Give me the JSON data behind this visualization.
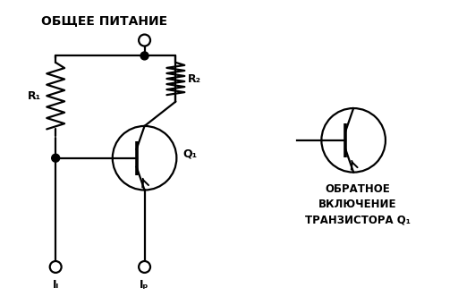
{
  "title": "ОБЩЕЕ ПИТАНИЕ",
  "label_R1": "R₁",
  "label_R2": "R₂",
  "label_Q1": "Q₁",
  "label_IL": "Iₗ",
  "label_IP": "Iₚ",
  "label_right1": "ОБРАТНОЕ",
  "label_right2": "ВКЛЮЧЕНИЕ",
  "label_right3": "ТРАНЗИСТОРА Q₁",
  "bg_color": "#ffffff",
  "line_color": "#000000",
  "figsize": [
    5.12,
    3.31
  ],
  "dpi": 100
}
